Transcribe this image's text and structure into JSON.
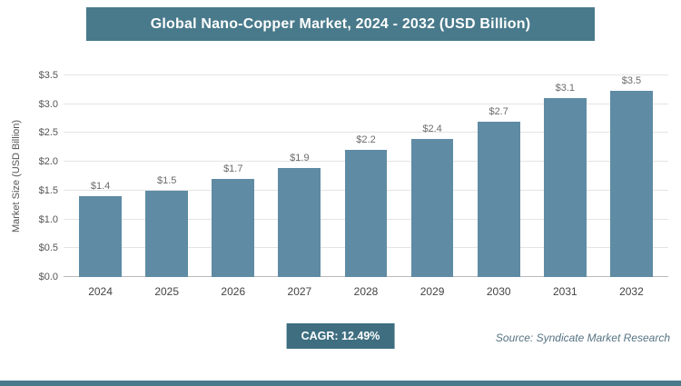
{
  "colors": {
    "header_bg": "#497a8b",
    "bar": "#5f8ba4",
    "badge_bg": "#3e6e80",
    "bottom_strip": "#497a8b"
  },
  "chart_data": {
    "type": "bar",
    "title": "Global Nano-Copper Market, 2024 - 2032 (USD Billion)",
    "ylabel": "Market Size (USD Billion)",
    "xlabel": "",
    "categories": [
      "2024",
      "2025",
      "2026",
      "2027",
      "2028",
      "2029",
      "2030",
      "2031",
      "2032"
    ],
    "values": [
      1.4,
      1.5,
      1.7,
      1.9,
      2.2,
      2.4,
      2.7,
      3.1,
      3.5
    ],
    "value_labels": [
      "$1.4",
      "$1.5",
      "$1.7",
      "$1.9",
      "$2.2",
      "$2.4",
      "$2.7",
      "$3.1",
      "$3.5"
    ],
    "yticks": [
      "$0.0",
      "$0.5",
      "$1.0",
      "$1.5",
      "$2.0",
      "$2.5",
      "$3.0",
      "$3.5"
    ],
    "ylim": [
      0,
      3.5
    ],
    "grid": true,
    "legend": false
  },
  "footer": {
    "cagr": "CAGR: 12.49%",
    "source": "Source: Syndicate Market Research"
  }
}
